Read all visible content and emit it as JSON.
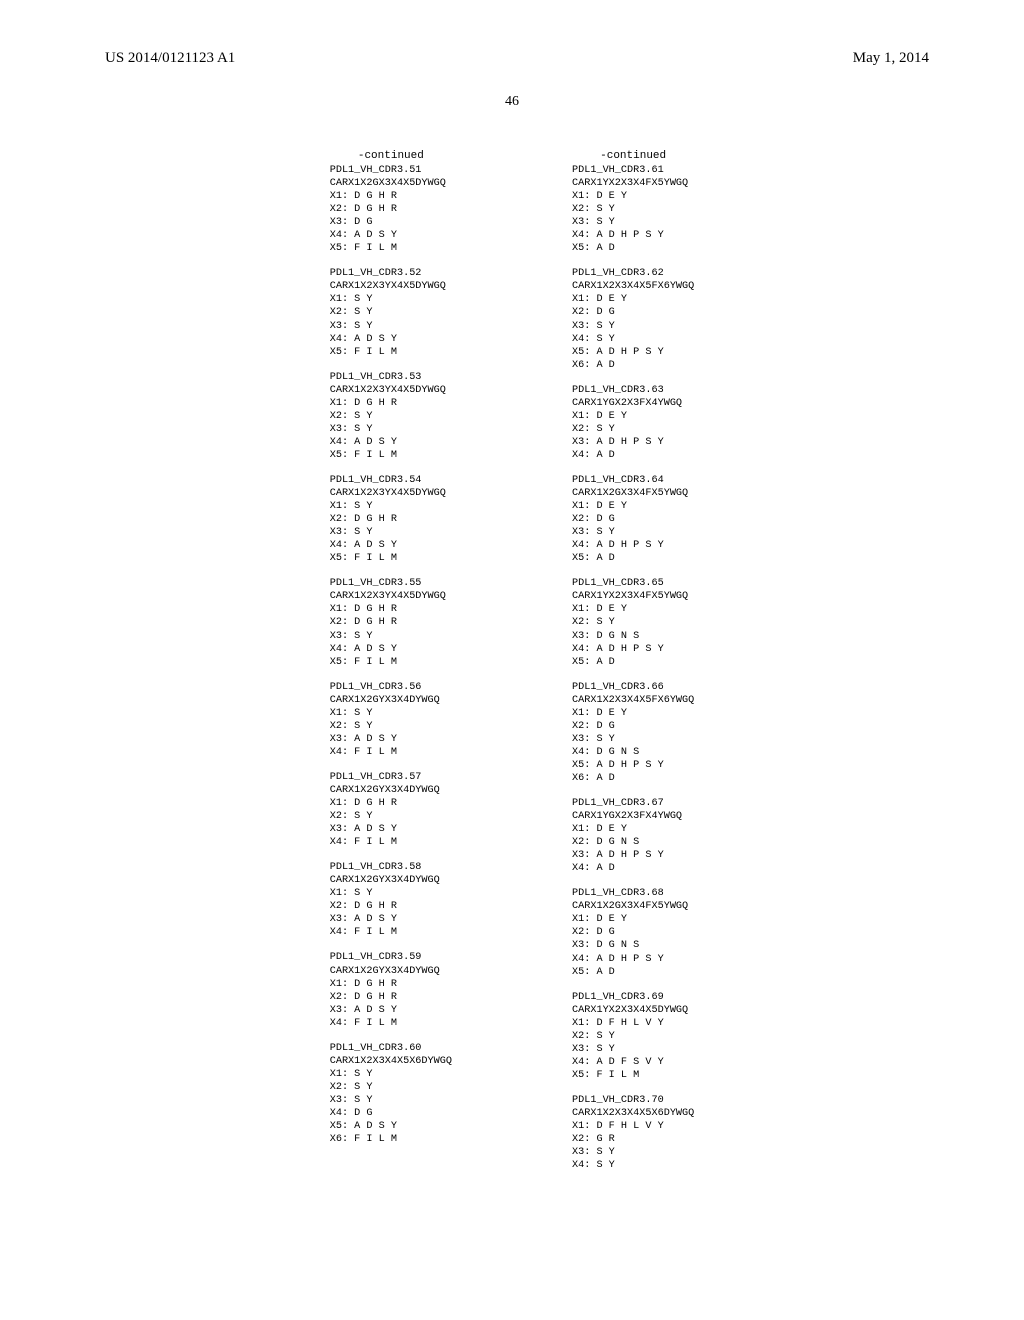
{
  "header": {
    "publication": "US 2014/0121123 A1",
    "date": "May 1, 2014"
  },
  "page_number": "46",
  "continued": "-continued",
  "left_col": [
    {
      "name": "PDL1_VH_CDR3.51",
      "seq": "CARX1X2GX3X4X5DYWGQ",
      "lines": [
        "X1: D G H R",
        "X2: D G H R",
        "X3: D G",
        "X4: A D S Y",
        "X5: F I L M"
      ]
    },
    {
      "name": "PDL1_VH_CDR3.52",
      "seq": "CARX1X2X3YX4X5DYWGQ",
      "lines": [
        "X1: S Y",
        "X2: S Y",
        "X3: S Y",
        "X4: A D S Y",
        "X5: F I L M"
      ]
    },
    {
      "name": "PDL1_VH_CDR3.53",
      "seq": "CARX1X2X3YX4X5DYWGQ",
      "lines": [
        "X1: D G H R",
        "X2: S Y",
        "X3: S Y",
        "X4: A D S Y",
        "X5: F I L M"
      ]
    },
    {
      "name": "PDL1_VH_CDR3.54",
      "seq": "CARX1X2X3YX4X5DYWGQ",
      "lines": [
        "X1: S Y",
        "X2: D G H R",
        "X3: S Y",
        "X4: A D S Y",
        "X5: F I L M"
      ]
    },
    {
      "name": "PDL1_VH_CDR3.55",
      "seq": "CARX1X2X3YX4X5DYWGQ",
      "lines": [
        "X1: D G H R",
        "X2: D G H R",
        "X3: S Y",
        "X4: A D S Y",
        "X5: F I L M"
      ]
    },
    {
      "name": "PDL1_VH_CDR3.56",
      "seq": "CARX1X2GYX3X4DYWGQ",
      "lines": [
        "X1: S Y",
        "X2: S Y",
        "X3: A D S Y",
        "X4: F I L M"
      ]
    },
    {
      "name": "PDL1_VH_CDR3.57",
      "seq": "CARX1X2GYX3X4DYWGQ",
      "lines": [
        "X1: D G H R",
        "X2: S Y",
        "X3: A D S Y",
        "X4: F I L M"
      ]
    },
    {
      "name": "PDL1_VH_CDR3.58",
      "seq": "CARX1X2GYX3X4DYWGQ",
      "lines": [
        "X1: S Y",
        "X2: D G H R",
        "X3: A D S Y",
        "X4: F I L M"
      ]
    },
    {
      "name": "PDL1_VH_CDR3.59",
      "seq": "CARX1X2GYX3X4DYWGQ",
      "lines": [
        "X1: D G H R",
        "X2: D G H R",
        "X3: A D S Y",
        "X4: F I L M"
      ]
    },
    {
      "name": "PDL1_VH_CDR3.60",
      "seq": "CARX1X2X3X4X5X6DYWGQ",
      "lines": [
        "X1: S Y",
        "X2: S Y",
        "X3: S Y",
        "X4: D G",
        "X5: A D S Y",
        "X6: F I L M"
      ]
    }
  ],
  "right_col": [
    {
      "name": "PDL1_VH_CDR3.61",
      "seq": "CARX1YX2X3X4FX5YWGQ",
      "lines": [
        "X1: D E Y",
        "X2: S Y",
        "X3: S Y",
        "X4: A D H P S Y",
        "X5: A D"
      ]
    },
    {
      "name": "PDL1_VH_CDR3.62",
      "seq": "CARX1X2X3X4X5FX6YWGQ",
      "lines": [
        "X1: D E Y",
        "X2: D G",
        "X3: S Y",
        "X4: S Y",
        "X5: A D H P S Y",
        "X6: A D"
      ]
    },
    {
      "name": "PDL1_VH_CDR3.63",
      "seq": "CARX1YGX2X3FX4YWGQ",
      "lines": [
        "X1: D E Y",
        "X2: S Y",
        "X3: A D H P S Y",
        "X4: A D"
      ]
    },
    {
      "name": "PDL1_VH_CDR3.64",
      "seq": "CARX1X2GX3X4FX5YWGQ",
      "lines": [
        "X1: D E Y",
        "X2: D G",
        "X3: S Y",
        "X4: A D H P S Y",
        "X5: A D"
      ]
    },
    {
      "name": "PDL1_VH_CDR3.65",
      "seq": "CARX1YX2X3X4FX5YWGQ",
      "lines": [
        "X1: D E Y",
        "X2: S Y",
        "X3: D G N S",
        "X4: A D H P S Y",
        "X5: A D"
      ]
    },
    {
      "name": "PDL1_VH_CDR3.66",
      "seq": "CARX1X2X3X4X5FX6YWGQ",
      "lines": [
        "X1: D E Y",
        "X2: D G",
        "X3: S Y",
        "X4: D G N S",
        "X5: A D H P S Y",
        "X6: A D"
      ]
    },
    {
      "name": "PDL1_VH_CDR3.67",
      "seq": "CARX1YGX2X3FX4YWGQ",
      "lines": [
        "X1: D E Y",
        "X2: D G N S",
        "X3: A D H P S Y",
        "X4: A D"
      ]
    },
    {
      "name": "PDL1_VH_CDR3.68",
      "seq": "CARX1X2GX3X4FX5YWGQ",
      "lines": [
        "X1: D E Y",
        "X2: D G",
        "X3: D G N S",
        "X4: A D H P S Y",
        "X5: A D"
      ]
    },
    {
      "name": "PDL1_VH_CDR3.69",
      "seq": "CARX1YX2X3X4X5DYWGQ",
      "lines": [
        "X1: D F H L V Y",
        "X2: S Y",
        "X3: S Y",
        "X4: A D F S V Y",
        "X5: F I L M"
      ]
    },
    {
      "name": "PDL1_VH_CDR3.70",
      "seq": "CARX1X2X3X4X5X6DYWGQ",
      "lines": [
        "X1: D F H L V Y",
        "X2: G R",
        "X3: S Y",
        "X4: S Y"
      ]
    }
  ]
}
